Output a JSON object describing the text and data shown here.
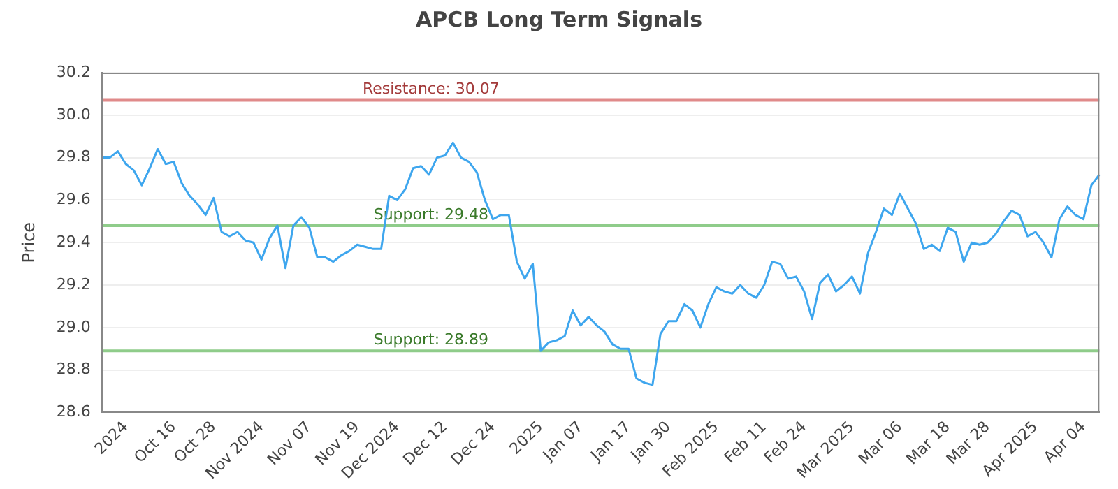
{
  "chart_data": {
    "type": "line",
    "title": "APCB Long Term Signals",
    "ylabel": "Price",
    "categories": [
      null,
      null,
      null,
      "2024",
      null,
      null,
      null,
      null,
      null,
      "Oct 16",
      null,
      null,
      null,
      null,
      "Oct 28",
      null,
      null,
      null,
      null,
      null,
      "Nov 2024",
      null,
      null,
      null,
      null,
      null,
      "Nov 07",
      null,
      null,
      null,
      null,
      null,
      "Nov 19",
      null,
      null,
      null,
      null,
      "Dec 2024",
      null,
      null,
      null,
      null,
      null,
      "Dec 12",
      null,
      null,
      null,
      null,
      null,
      "Dec 24",
      null,
      null,
      null,
      null,
      null,
      "2025",
      null,
      null,
      null,
      null,
      "Jan 07",
      null,
      null,
      null,
      null,
      null,
      "Jan 17",
      null,
      null,
      null,
      null,
      "Jan 30",
      null,
      null,
      null,
      null,
      null,
      "Feb 2025",
      null,
      null,
      null,
      null,
      null,
      "Feb 11",
      null,
      null,
      null,
      null,
      "Feb 24",
      null,
      null,
      null,
      null,
      null,
      "Mar 2025",
      null,
      null,
      null,
      null,
      null,
      "Mar 06",
      null,
      null,
      null,
      null,
      null,
      "Mar 18",
      null,
      null,
      null,
      null,
      "Mar 28",
      null,
      null,
      null,
      null,
      null,
      "Apr 2025",
      null,
      null,
      null,
      null,
      null,
      "Apr 04",
      null,
      null
    ],
    "series": [
      {
        "color": "#3ea6ee",
        "values": [
          29.8,
          29.8,
          29.83,
          29.77,
          29.74,
          29.67,
          29.75,
          29.84,
          29.77,
          29.78,
          29.68,
          29.62,
          29.58,
          29.53,
          29.61,
          29.45,
          29.43,
          29.45,
          29.41,
          29.4,
          29.32,
          29.42,
          29.48,
          29.28,
          29.48,
          29.52,
          29.47,
          29.33,
          29.33,
          29.31,
          29.34,
          29.36,
          29.39,
          29.38,
          29.37,
          29.37,
          29.62,
          29.6,
          29.65,
          29.75,
          29.76,
          29.72,
          29.8,
          29.81,
          29.87,
          29.8,
          29.78,
          29.73,
          29.6,
          29.51,
          29.53,
          29.53,
          29.31,
          29.23,
          29.3,
          28.89,
          28.93,
          28.94,
          28.96,
          29.08,
          29.01,
          29.05,
          29.01,
          28.98,
          28.92,
          28.9,
          28.9,
          28.76,
          28.74,
          28.73,
          28.97,
          29.03,
          29.03,
          29.11,
          29.08,
          29.0,
          29.11,
          29.19,
          29.17,
          29.16,
          29.2,
          29.16,
          29.14,
          29.2,
          29.31,
          29.3,
          29.23,
          29.24,
          29.17,
          29.04,
          29.21,
          29.25,
          29.17,
          29.2,
          29.24,
          29.16,
          29.35,
          29.45,
          29.56,
          29.53,
          29.63,
          29.56,
          29.49,
          29.37,
          29.39,
          29.36,
          29.47,
          29.45,
          29.31,
          29.4,
          29.39,
          29.4,
          29.44,
          29.5,
          29.55,
          29.53,
          29.43,
          29.45,
          29.4,
          29.33,
          29.51,
          29.57,
          29.53,
          29.51,
          29.67,
          29.72
        ]
      }
    ],
    "ylim": [
      28.6,
      30.2
    ],
    "yticks": [
      28.6,
      28.8,
      {
        "value": 29,
        "label": "29.0"
      },
      29.2,
      29.4,
      29.6,
      29.8,
      {
        "value": 30,
        "label": "30.0"
      },
      30.2
    ],
    "grid": "y",
    "legend": false,
    "marker": "none",
    "line_style": "solid",
    "ref_lines": [
      {
        "axis": "y",
        "value": 30.07,
        "label": "Resistance: 30.07",
        "color": "#e08a8a"
      },
      {
        "axis": "y",
        "value": 29.48,
        "label": "Support: 29.48",
        "color": "#8fcc8a"
      },
      {
        "axis": "y",
        "value": 28.89,
        "label": "Support: 28.89",
        "color": "#8fcc8a"
      }
    ]
  }
}
